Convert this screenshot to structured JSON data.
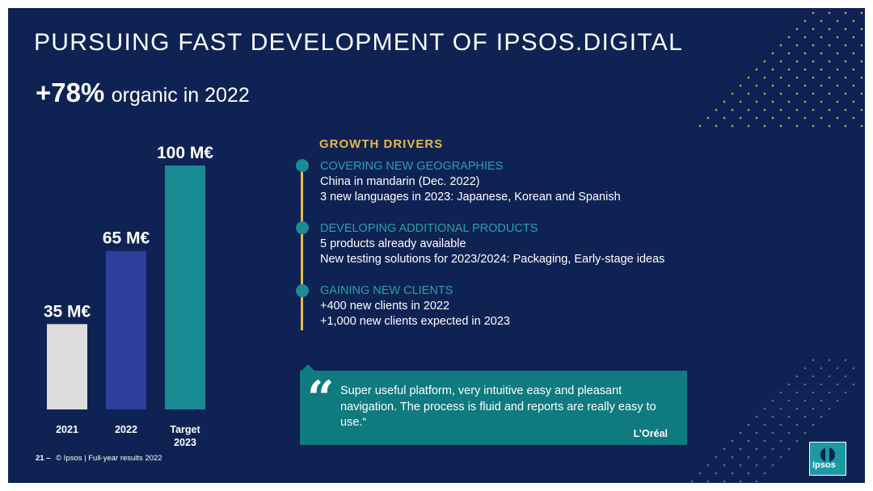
{
  "slide": {
    "title": "PURSUING FAST DEVELOPMENT OF IPSOS.DIGITAL",
    "growth_value": "+78%",
    "growth_text": "organic in 2022"
  },
  "chart_data": {
    "type": "bar",
    "categories": [
      "2021",
      "2022",
      "Target 2023"
    ],
    "values": [
      35,
      65,
      100
    ],
    "value_labels": [
      "35 M€",
      "65 M€",
      "100 M€"
    ],
    "bar_colors": [
      "#dcdcdc",
      "#2d3f9a",
      "#1a8a93"
    ],
    "title": "",
    "xlabel": "",
    "ylabel": "",
    "ylim": [
      0,
      100
    ],
    "grid": false
  },
  "drivers": {
    "heading": "GROWTH DRIVERS",
    "items": [
      {
        "title": "COVERING NEW GEOGRAPHIES",
        "lines": [
          "China in mandarin (Dec. 2022)",
          "3 new languages in 2023: Japanese, Korean and Spanish"
        ]
      },
      {
        "title": "DEVELOPING ADDITIONAL PRODUCTS",
        "lines": [
          "5 products already available",
          "New testing solutions for 2023/2024: Packaging, Early-stage ideas"
        ]
      },
      {
        "title": "GAINING NEW CLIENTS",
        "lines": [
          "+400 new clients in 2022",
          "+1,000 new clients expected in 2023"
        ]
      }
    ]
  },
  "quote": {
    "icon": "quote-mark-icon",
    "text": "Super useful platform, very intuitive easy and pleasant navigation. The process is fluid and reports are really easy to use.“",
    "author": "L’Oréal"
  },
  "footer": {
    "page_number": "21 –",
    "text": "© Ipsos | Full-year results 2022"
  },
  "logo": {
    "text": "Ipsos",
    "icon": "ipsos-logo-icon"
  },
  "colors": {
    "background": "#0e2254",
    "accent_gold": "#e8b84a",
    "accent_teal": "#1a8a93",
    "driver_title": "#2aa2ab"
  }
}
